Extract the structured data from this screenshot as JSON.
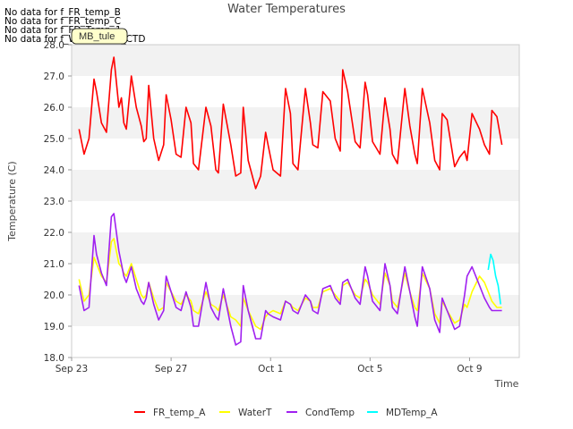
{
  "chart_data": {
    "type": "line",
    "title": "Water Temperatures",
    "xlabel": "Time",
    "ylabel": "Temperature (C)",
    "ylim": [
      18.0,
      28.0
    ],
    "yticks": [
      "18.0",
      "19.0",
      "20.0",
      "21.0",
      "22.0",
      "23.0",
      "24.0",
      "25.0",
      "26.0",
      "27.0",
      "28.0"
    ],
    "x_range_days": [
      0,
      18
    ],
    "xticks": [
      {
        "label": "Sep 23",
        "day": 0
      },
      {
        "label": "Sep 27",
        "day": 4
      },
      {
        "label": "Oct 1",
        "day": 8
      },
      {
        "label": "Oct 5",
        "day": 12
      },
      {
        "label": "Oct 9",
        "day": 16
      }
    ],
    "grid": "horizontal bands",
    "legend_position": "bottom",
    "no_data_messages": [
      "No data for f_FR_temp_B",
      "No data for f_FR_temp_C",
      "No data for f_FD_Temp_1",
      "No data for f_WaterTemp_CTD"
    ],
    "tooltip_label": "MB_tule",
    "series": [
      {
        "name": "FR_temp_A",
        "color": "#ff0000",
        "x": [
          0.3,
          0.5,
          0.7,
          0.9,
          1.0,
          1.2,
          1.4,
          1.6,
          1.7,
          1.9,
          2.0,
          2.1,
          2.2,
          2.4,
          2.6,
          2.8,
          2.9,
          3.0,
          3.1,
          3.3,
          3.5,
          3.7,
          3.8,
          4.0,
          4.2,
          4.4,
          4.6,
          4.8,
          4.9,
          5.1,
          5.4,
          5.6,
          5.8,
          5.9,
          6.1,
          6.4,
          6.6,
          6.8,
          6.9,
          7.1,
          7.4,
          7.6,
          7.8,
          7.9,
          8.1,
          8.4,
          8.6,
          8.8,
          8.9,
          9.1,
          9.4,
          9.6,
          9.7,
          9.9,
          10.1,
          10.4,
          10.6,
          10.8,
          10.9,
          11.1,
          11.4,
          11.6,
          11.8,
          11.9,
          12.1,
          12.4,
          12.6,
          12.8,
          12.9,
          13.1,
          13.4,
          13.6,
          13.8,
          13.9,
          14.1,
          14.4,
          14.6,
          14.8,
          14.9,
          15.1,
          15.4,
          15.6,
          15.8,
          15.9,
          16.1,
          16.4,
          16.6,
          16.8,
          16.9,
          17.1,
          17.3
        ],
        "values": [
          25.3,
          24.5,
          25.0,
          26.9,
          26.5,
          25.5,
          25.2,
          27.2,
          27.6,
          26.0,
          26.3,
          25.5,
          25.3,
          27.0,
          26.0,
          25.4,
          24.9,
          25.0,
          26.7,
          25.0,
          24.3,
          24.8,
          26.4,
          25.6,
          24.5,
          24.4,
          26.0,
          25.5,
          24.2,
          24.0,
          26.0,
          25.4,
          24.0,
          23.9,
          26.1,
          24.8,
          23.8,
          23.9,
          26.0,
          24.3,
          23.4,
          23.8,
          25.2,
          24.8,
          24.0,
          23.8,
          26.6,
          25.8,
          24.2,
          24.0,
          26.6,
          25.5,
          24.8,
          24.7,
          26.5,
          26.2,
          25.0,
          24.6,
          27.2,
          26.5,
          24.9,
          24.7,
          26.8,
          26.4,
          24.9,
          24.5,
          26.3,
          25.3,
          24.5,
          24.2,
          26.6,
          25.4,
          24.5,
          24.2,
          26.6,
          25.5,
          24.3,
          24.0,
          25.8,
          25.6,
          24.1,
          24.4,
          24.6,
          24.3,
          25.8,
          25.3,
          24.8,
          24.5,
          25.9,
          25.7,
          24.8
        ]
      },
      {
        "name": "WaterT",
        "color": "#ffff00",
        "x": [
          0.3,
          0.5,
          0.7,
          0.9,
          1.0,
          1.2,
          1.4,
          1.6,
          1.7,
          1.9,
          2.0,
          2.1,
          2.2,
          2.4,
          2.6,
          2.8,
          2.9,
          3.0,
          3.1,
          3.3,
          3.5,
          3.7,
          3.8,
          4.0,
          4.2,
          4.4,
          4.6,
          4.8,
          4.9,
          5.1,
          5.4,
          5.6,
          5.8,
          5.9,
          6.1,
          6.4,
          6.6,
          6.8,
          6.9,
          7.1,
          7.4,
          7.6,
          7.8,
          7.9,
          8.1,
          8.4,
          8.6,
          8.8,
          8.9,
          9.1,
          9.4,
          9.6,
          9.7,
          9.9,
          10.1,
          10.4,
          10.6,
          10.8,
          10.9,
          11.1,
          11.4,
          11.6,
          11.8,
          11.9,
          12.1,
          12.4,
          12.6,
          12.8,
          12.9,
          13.1,
          13.4,
          13.6,
          13.8,
          13.9,
          14.1,
          14.4,
          14.6,
          14.8,
          14.9,
          15.1,
          15.4,
          15.6,
          15.8,
          15.9,
          16.1,
          16.4,
          16.6,
          16.8,
          16.9,
          17.1,
          17.3
        ],
        "values": [
          20.5,
          19.8,
          20.0,
          21.2,
          21.0,
          20.6,
          20.4,
          21.7,
          21.8,
          21.0,
          20.9,
          20.7,
          20.6,
          21.0,
          20.5,
          20.0,
          19.9,
          20.0,
          20.4,
          19.9,
          19.5,
          19.6,
          20.4,
          20.1,
          19.8,
          19.7,
          20.0,
          19.8,
          19.5,
          19.4,
          20.1,
          19.7,
          19.6,
          19.5,
          20.0,
          19.3,
          19.2,
          19.0,
          19.9,
          19.5,
          19.0,
          18.9,
          19.3,
          19.4,
          19.5,
          19.4,
          19.8,
          19.7,
          19.6,
          19.5,
          19.9,
          19.8,
          19.6,
          19.6,
          20.1,
          20.2,
          20.0,
          19.8,
          20.3,
          20.4,
          20.0,
          19.9,
          20.5,
          20.4,
          20.0,
          19.7,
          20.7,
          20.3,
          19.8,
          19.6,
          20.7,
          20.1,
          19.6,
          19.5,
          20.7,
          20.2,
          19.4,
          19.1,
          19.8,
          19.5,
          19.1,
          19.2,
          19.7,
          19.6,
          20.1,
          20.6,
          20.4,
          20.0,
          19.8,
          19.6,
          19.6
        ]
      },
      {
        "name": "CondTemp",
        "color": "#a020f0",
        "x": [
          0.3,
          0.5,
          0.7,
          0.9,
          1.0,
          1.2,
          1.4,
          1.6,
          1.7,
          1.9,
          2.0,
          2.1,
          2.2,
          2.4,
          2.6,
          2.8,
          2.9,
          3.0,
          3.1,
          3.3,
          3.5,
          3.7,
          3.8,
          4.0,
          4.2,
          4.4,
          4.6,
          4.8,
          4.9,
          5.1,
          5.4,
          5.6,
          5.8,
          5.9,
          6.1,
          6.4,
          6.6,
          6.8,
          6.9,
          7.1,
          7.4,
          7.6,
          7.8,
          7.9,
          8.1,
          8.4,
          8.6,
          8.8,
          8.9,
          9.1,
          9.4,
          9.6,
          9.7,
          9.9,
          10.1,
          10.4,
          10.6,
          10.8,
          10.9,
          11.1,
          11.4,
          11.6,
          11.8,
          11.9,
          12.1,
          12.4,
          12.6,
          12.8,
          12.9,
          13.1,
          13.4,
          13.6,
          13.8,
          13.9,
          14.1,
          14.4,
          14.6,
          14.8,
          14.9,
          15.1,
          15.4,
          15.6,
          15.8,
          15.9,
          16.1,
          16.4,
          16.6,
          16.8,
          16.9,
          17.1,
          17.3
        ],
        "values": [
          20.3,
          19.5,
          19.6,
          21.9,
          21.3,
          20.7,
          20.3,
          22.5,
          22.6,
          21.4,
          21.0,
          20.6,
          20.4,
          20.9,
          20.2,
          19.8,
          19.7,
          19.9,
          20.4,
          19.7,
          19.2,
          19.5,
          20.6,
          20.1,
          19.6,
          19.5,
          20.1,
          19.6,
          19.0,
          19.0,
          20.4,
          19.6,
          19.3,
          19.2,
          20.2,
          19.0,
          18.4,
          18.5,
          20.3,
          19.5,
          18.6,
          18.6,
          19.5,
          19.4,
          19.3,
          19.2,
          19.8,
          19.7,
          19.5,
          19.4,
          20.0,
          19.8,
          19.5,
          19.4,
          20.2,
          20.3,
          19.9,
          19.7,
          20.4,
          20.5,
          19.9,
          19.7,
          20.9,
          20.6,
          19.8,
          19.5,
          21.0,
          20.3,
          19.6,
          19.4,
          20.9,
          20.1,
          19.3,
          19.0,
          20.9,
          20.2,
          19.2,
          18.8,
          19.9,
          19.5,
          18.9,
          19.0,
          20.0,
          20.6,
          20.9,
          20.3,
          19.9,
          19.6,
          19.5,
          19.5,
          19.5
        ]
      },
      {
        "name": "MDTemp_A",
        "color": "#00ffff",
        "x": [
          16.75,
          16.85,
          16.95,
          17.05,
          17.15,
          17.25
        ],
        "values": [
          20.8,
          21.3,
          21.1,
          20.6,
          20.3,
          19.7
        ]
      }
    ]
  }
}
